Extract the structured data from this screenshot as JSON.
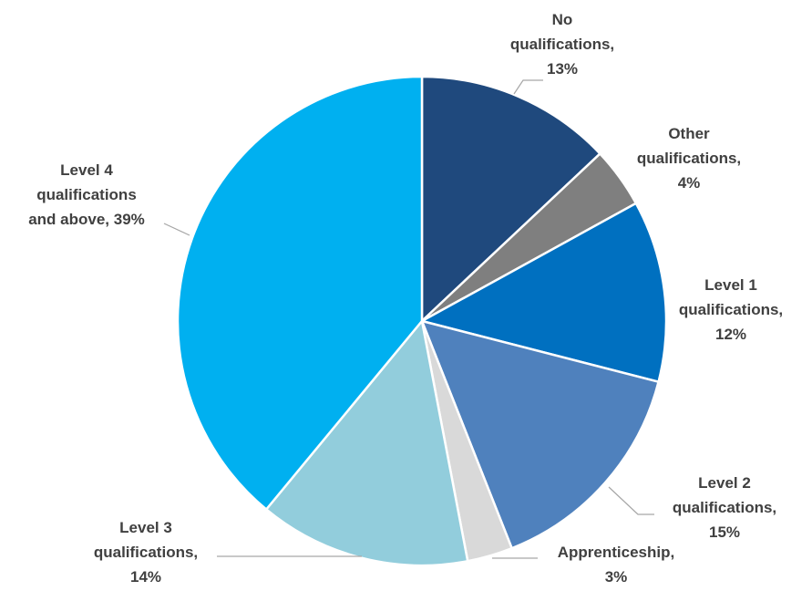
{
  "chart_data": {
    "type": "pie",
    "title": "",
    "start_angle_deg": 0,
    "direction": "clockwise",
    "slices": [
      {
        "category": "No qualifications",
        "value": 13,
        "label_lines": [
          "No",
          "qualifications,",
          "13%"
        ],
        "color": "#1f497d"
      },
      {
        "category": "Other qualifications",
        "value": 4,
        "label_lines": [
          "Other",
          "qualifications,",
          "4%"
        ],
        "color": "#7f7f7f"
      },
      {
        "category": "Level 1 qualifications",
        "value": 12,
        "label_lines": [
          "Level 1",
          "qualifications,",
          "12%"
        ],
        "color": "#0070c0"
      },
      {
        "category": "Level 2 qualifications",
        "value": 15,
        "label_lines": [
          "Level 2",
          "qualifications,",
          "15%"
        ],
        "color": "#4f81bd"
      },
      {
        "category": "Apprenticeship",
        "value": 3,
        "label_lines": [
          "Apprenticeship,",
          "3%"
        ],
        "color": "#d9d9d9"
      },
      {
        "category": "Level 3 qualifications",
        "value": 14,
        "label_lines": [
          "Level 3",
          "qualifications,",
          "14%"
        ],
        "color": "#92cddc"
      },
      {
        "category": "Level 4 qualifications and above",
        "value": 39,
        "label_lines": [
          "Level 4",
          "qualifications",
          "and above, 39%"
        ],
        "color": "#00b0f0"
      }
    ],
    "legend": "none",
    "label_color": "#404040",
    "leader_line_color": "#a6a6a6"
  }
}
